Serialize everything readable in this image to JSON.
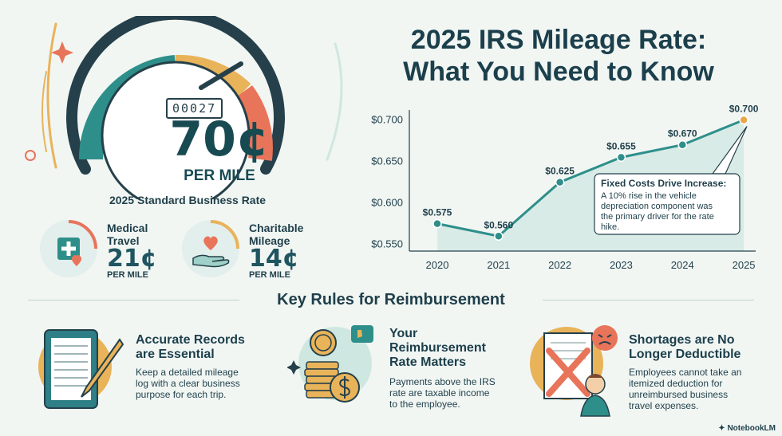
{
  "title": {
    "line1": "2025 IRS Mileage Rate:",
    "line2": "What You Need to Know"
  },
  "gauge": {
    "odometer": "00027",
    "rate": "70¢",
    "unit": "PER MILE",
    "label": "2025 Standard Business Rate"
  },
  "rates": [
    {
      "title1": "Medical",
      "title2": "Travel",
      "value": "21¢",
      "unit": "PER MILE",
      "icon": "medical-heart-icon"
    },
    {
      "title1": "Charitable",
      "title2": "Mileage",
      "value": "14¢",
      "unit": "PER MILE",
      "icon": "heart-hand-icon"
    }
  ],
  "chart_data": {
    "type": "line",
    "x": [
      "2020",
      "2021",
      "2022",
      "2023",
      "2024",
      "2025"
    ],
    "values": [
      0.575,
      0.56,
      0.625,
      0.655,
      0.67,
      0.7
    ],
    "labels": [
      "$0.575",
      "$0.560",
      "$0.625",
      "$0.655",
      "$0.670",
      "$0.700"
    ],
    "yticks": [
      "$0.550",
      "$0.600",
      "$0.650",
      "$0.700"
    ],
    "ytick_values": [
      0.55,
      0.6,
      0.65,
      0.7
    ],
    "ylim": [
      0.542,
      0.712
    ],
    "grid": false,
    "colors": {
      "line": "#2e8f8a",
      "area": "#cfe7e1",
      "marker": "#2e8f8a",
      "highlight": "#e8a84a"
    },
    "annotation": {
      "title": "Fixed Costs Drive Increase:",
      "lines": [
        "A 10% rise in the vehicle",
        "depreciation component was",
        "the primary driver for the rate",
        "hike."
      ]
    }
  },
  "section_title": "Key Rules for Reimbursement",
  "rules": [
    {
      "title1": "Accurate Records",
      "title2": "are Essential",
      "body": [
        "Keep a detailed mileage",
        "log with a clear business",
        "purpose for each trip."
      ],
      "icon": "tablet-log-icon"
    },
    {
      "title1": "Your",
      "title2": "Reimbursement",
      "title3": "Rate Matters",
      "body": [
        "Payments above the IRS",
        "rate are taxable income",
        "to the employee."
      ],
      "icon": "coin-stack-icon"
    },
    {
      "title1": "Shortages are No",
      "title2": "Longer Deductible",
      "body": [
        "Employees cannot take an",
        "itemized deduction for",
        "unreimbursed business",
        "travel expenses."
      ],
      "icon": "no-deduction-icon"
    }
  ],
  "brand": "NotebookLM"
}
